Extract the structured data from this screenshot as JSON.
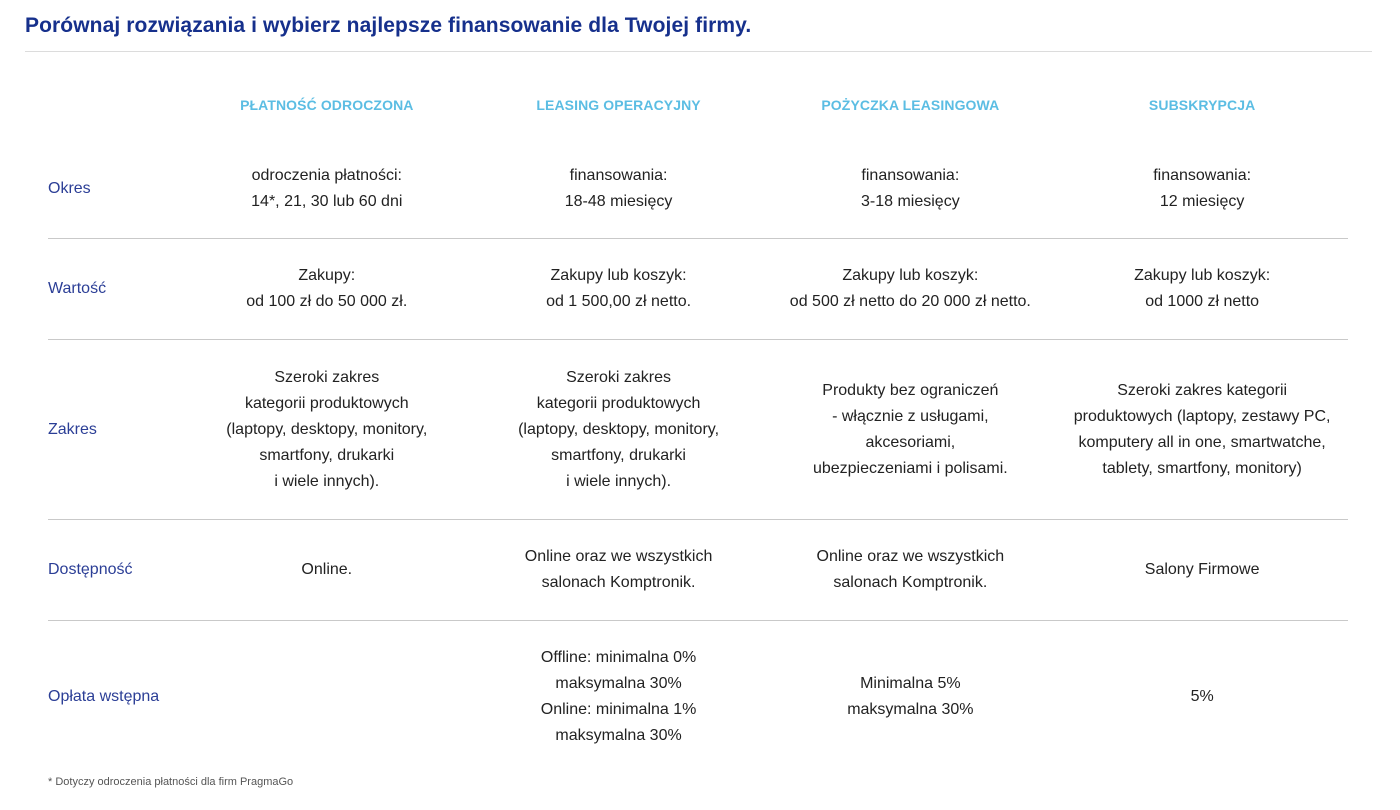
{
  "title": "Porównaj rozwiązania i wybierz najlepsze finansowanie dla Twojej firmy.",
  "columns": [
    "PŁATNOŚĆ ODROCZONA",
    "LEASING OPERACYJNY",
    "POŻYCZKA LEASINGOWA",
    "SUBSKRYPCJA"
  ],
  "rows": [
    {
      "label": "Okres",
      "cells": [
        [
          "odroczenia płatności:",
          "14*, 21, 30 lub 60 dni"
        ],
        [
          "finansowania:",
          "18-48 miesięcy"
        ],
        [
          "finansowania:",
          "3-18 miesięcy"
        ],
        [
          "finansowania:",
          "12 miesięcy"
        ]
      ]
    },
    {
      "label": "Wartość",
      "cells": [
        [
          "Zakupy:",
          "od 100 zł do 50 000 zł."
        ],
        [
          "Zakupy lub koszyk:",
          "od 1 500,00 zł netto."
        ],
        [
          "Zakupy lub koszyk:",
          "od 500 zł netto do 20 000 zł netto."
        ],
        [
          "Zakupy lub koszyk:",
          "od 1000 zł netto"
        ]
      ]
    },
    {
      "label": "Zakres",
      "cells": [
        [
          "Szeroki zakres",
          "kategorii produktowych",
          "(laptopy, desktopy, monitory,",
          "smartfony, drukarki",
          "i wiele innych)."
        ],
        [
          "Szeroki zakres",
          "kategorii produktowych",
          "(laptopy, desktopy, monitory,",
          "smartfony, drukarki",
          "i wiele innych)."
        ],
        [
          "Produkty bez ograniczeń",
          "- włącznie z usługami,",
          "akcesoriami,",
          "ubezpieczeniami i polisami."
        ],
        [
          "Szeroki zakres kategorii",
          "produktowych (laptopy, zestawy PC,",
          "komputery all in one, smartwatche,",
          "tablety, smartfony, monitory)"
        ]
      ]
    },
    {
      "label": "Dostępność",
      "cells": [
        [
          "Online."
        ],
        [
          "Online oraz we wszystkich",
          "salonach Komptronik."
        ],
        [
          "Online oraz we wszystkich",
          "salonach Komptronik."
        ],
        [
          "Salony Firmowe"
        ]
      ]
    },
    {
      "label": "Opłata wstępna",
      "cells": [
        [],
        [
          "Offline: minimalna 0%",
          "maksymalna 30%",
          "Online: minimalna 1%",
          "maksymalna 30%"
        ],
        [
          "Minimalna 5%",
          "maksymalna 30%"
        ],
        [
          "5%"
        ]
      ]
    }
  ],
  "footnote": "* Dotyczy odroczenia płatności dla firm PragmaGo",
  "colors": {
    "title": "#16308c",
    "column_header": "#5bbde3",
    "row_label": "#2b3e96"
  }
}
